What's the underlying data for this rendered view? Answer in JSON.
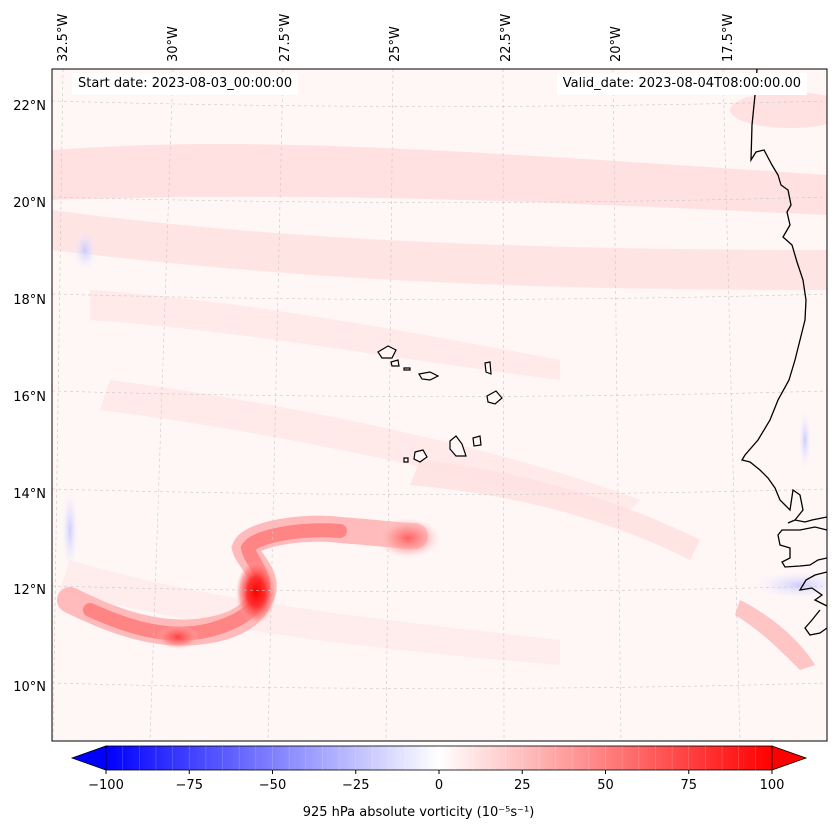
{
  "map": {
    "title_left_label": "Start date:",
    "start_date": "2023-08-03_00:00:00",
    "title_right_label": "Valid_date:",
    "valid_date": "2023-08-04T08:00:00.00",
    "lon_labels": [
      "32.5°W",
      "30°W",
      "27.5°W",
      "25°W",
      "22.5°W",
      "20°W",
      "17.5°W"
    ],
    "lat_labels": [
      "22°N",
      "20°N",
      "18°N",
      "16°N",
      "14°N",
      "12°N",
      "10°N"
    ],
    "extent": {
      "lon_min": -33,
      "lon_max": -16,
      "lat_min": 9,
      "lat_max": 22.8
    },
    "features": {
      "land_outline": "west-africa-coast",
      "islands": "cabo-verde"
    },
    "vorticity_maxima": [
      {
        "name": "vortex-main",
        "lon": -27.5,
        "lat": 11.9,
        "value": 100
      },
      {
        "name": "vortex-east",
        "lon": -24.8,
        "lat": 13.0,
        "value": 50
      },
      {
        "name": "vortex-west",
        "lon": -30.6,
        "lat": 10.95,
        "value": 60
      }
    ]
  },
  "colorbar": {
    "ticks": [
      "−100",
      "−75",
      "−50",
      "−25",
      "0",
      "25",
      "50",
      "75",
      "100"
    ],
    "min": -100,
    "max": 100,
    "levels": 41,
    "label": "925 hPa absolute vorticity (10⁻⁵s⁻¹)",
    "colormap": "bwr",
    "colors": {
      "min": "#0000ff",
      "mid": "#ffffff",
      "max": "#ff0000"
    }
  }
}
